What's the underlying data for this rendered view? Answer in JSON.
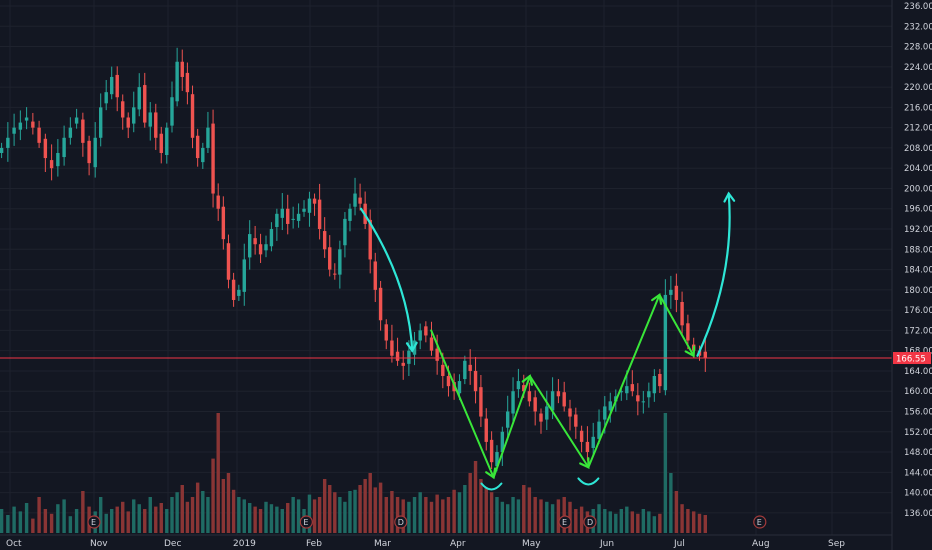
{
  "chart_data": {
    "type": "candlestick",
    "title": "",
    "y_axis": {
      "position": "right",
      "range": [
        134,
        236
      ],
      "tick_values": [
        136,
        140,
        144,
        148,
        152,
        156,
        160,
        164,
        168,
        172,
        176,
        180,
        184,
        188,
        192,
        196,
        200,
        204,
        208,
        212,
        216,
        220,
        224,
        228,
        232,
        236
      ],
      "tick_labels": [
        "136.00",
        "140.00",
        "144.00",
        "148.00",
        "152.00",
        "156.00",
        "160.00",
        "164.00",
        "168.00",
        "172.00",
        "176.00",
        "180.00",
        "184.00",
        "188.00",
        "192.00",
        "196.00",
        "200.00",
        "204.00",
        "208.00",
        "212.00",
        "216.00",
        "220.00",
        "224.00",
        "228.00",
        "232.00",
        "236.00"
      ]
    },
    "x_axis": {
      "tick_labels": [
        "Oct",
        "Nov",
        "Dec",
        "2019",
        "Feb",
        "Mar",
        "Apr",
        "May",
        "Jun",
        "Jul",
        "Aug",
        "Sep"
      ],
      "tick_positions_month_index": [
        0,
        1,
        2,
        3,
        4,
        5,
        6,
        7,
        8,
        9,
        10,
        11
      ]
    },
    "last_price": {
      "value": 166.55,
      "label": "166.55",
      "color": "#f23645"
    },
    "grid": true,
    "colors": {
      "background": "#131722",
      "up": "#26a69a",
      "down": "#ef5350",
      "volume_up": "#1f6b64",
      "volume_down": "#8a3535",
      "grid": "#1e222d",
      "axis_text": "#d1d4dc",
      "annotation_cyan": "#2ee6d6",
      "annotation_green": "#39e639"
    },
    "price_path_closes": [
      208,
      210,
      212,
      213,
      214,
      212,
      209,
      206,
      204,
      207,
      210,
      212,
      214,
      209,
      205,
      210,
      216,
      219,
      222,
      218,
      214,
      212,
      216,
      220,
      213,
      215,
      210,
      207,
      212,
      218,
      225,
      222,
      219,
      210,
      206,
      208,
      212,
      199,
      196,
      190,
      182,
      178,
      180,
      186,
      191,
      189,
      187,
      189,
      192,
      195,
      196,
      193,
      194,
      195,
      196,
      198,
      197,
      192,
      188,
      184,
      183,
      188,
      194,
      196,
      199,
      197,
      193,
      186,
      180,
      174,
      170,
      167,
      166,
      165,
      168,
      170,
      172,
      171,
      168,
      166,
      163,
      161,
      160,
      162,
      166,
      164,
      160,
      155,
      150,
      146,
      148,
      152,
      156,
      160,
      162,
      160,
      158,
      156,
      154,
      157,
      160,
      159,
      157,
      155,
      153,
      150,
      148,
      151,
      154,
      157,
      158,
      159,
      160,
      161,
      160,
      158,
      158,
      160,
      163,
      161,
      179,
      180,
      178,
      173,
      170,
      168,
      167,
      166.55
    ],
    "volume_relative": [
      0.2,
      0.15,
      0.22,
      0.18,
      0.25,
      0.12,
      0.3,
      0.2,
      0.16,
      0.24,
      0.28,
      0.14,
      0.2,
      0.35,
      0.22,
      0.18,
      0.3,
      0.16,
      0.2,
      0.22,
      0.26,
      0.18,
      0.28,
      0.24,
      0.2,
      0.3,
      0.22,
      0.25,
      0.2,
      0.3,
      0.34,
      0.4,
      0.26,
      0.3,
      0.42,
      0.35,
      0.3,
      0.62,
      1.0,
      0.45,
      0.5,
      0.36,
      0.3,
      0.28,
      0.25,
      0.22,
      0.2,
      0.26,
      0.24,
      0.22,
      0.2,
      0.25,
      0.3,
      0.28,
      0.2,
      0.32,
      0.28,
      0.3,
      0.45,
      0.4,
      0.34,
      0.3,
      0.26,
      0.35,
      0.36,
      0.4,
      0.45,
      0.5,
      0.38,
      0.42,
      0.3,
      0.35,
      0.3,
      0.28,
      0.26,
      0.3,
      0.34,
      0.3,
      0.26,
      0.32,
      0.28,
      0.3,
      0.36,
      0.34,
      0.4,
      0.5,
      0.6,
      0.45,
      0.38,
      0.34,
      0.3,
      0.26,
      0.24,
      0.3,
      0.28,
      0.4,
      0.38,
      0.3,
      0.28,
      0.26,
      0.24,
      0.28,
      0.3,
      0.26,
      0.2,
      0.22,
      0.18,
      0.2,
      0.24,
      0.2,
      0.18,
      0.16,
      0.2,
      0.22,
      0.18,
      0.16,
      0.2,
      0.18,
      0.14,
      0.16,
      1.0,
      0.5,
      0.35,
      0.24,
      0.2,
      0.18,
      0.16,
      0.15
    ],
    "event_markers": [
      {
        "label": "E",
        "month_pos": 1.0
      },
      {
        "label": "E",
        "month_pos": 3.95
      },
      {
        "label": "D",
        "month_pos": 5.3
      },
      {
        "label": "E",
        "month_pos": 7.5
      },
      {
        "label": "D",
        "month_pos": 7.82
      },
      {
        "label": "E",
        "month_pos": 10.05
      }
    ],
    "annotations": [
      {
        "type": "curved-arrow",
        "color": "cyan",
        "from": [
          4.75,
          196
        ],
        "to": [
          5.45,
          168
        ]
      },
      {
        "type": "zigzag",
        "color": "green",
        "points": [
          [
            5.7,
            172
          ],
          [
            6.55,
            143
          ],
          [
            7.05,
            163
          ],
          [
            7.8,
            145
          ],
          [
            8.75,
            179
          ],
          [
            9.2,
            167
          ]
        ]
      },
      {
        "type": "curved-arrow",
        "color": "cyan",
        "from": [
          9.25,
          167
        ],
        "to": [
          9.65,
          199
        ]
      },
      {
        "type": "smile",
        "color": "cyan",
        "at": [
          6.52,
          141
        ]
      },
      {
        "type": "smile",
        "color": "cyan",
        "at": [
          7.8,
          142
        ]
      }
    ]
  }
}
